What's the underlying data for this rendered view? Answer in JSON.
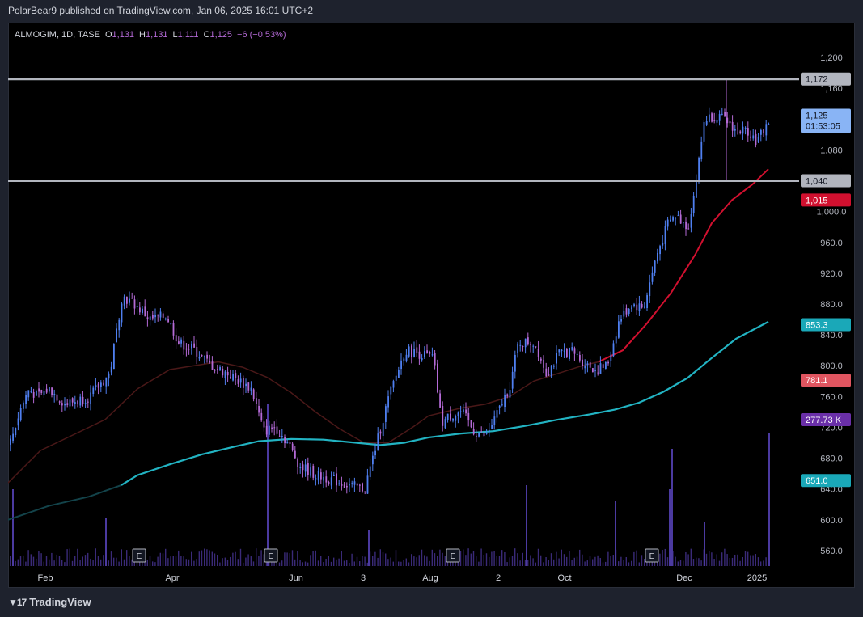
{
  "header": {
    "publisher_line": "PolarBear9 published on TradingView.com, Jan 06, 2025 16:01 UTC+2"
  },
  "footer": {
    "brand": "TradingView",
    "logo_icon": "tradingview-logo-icon"
  },
  "colors": {
    "background": "#000000",
    "up": "#4f7ff0",
    "down": "#b46ad6",
    "level_line": "#b2b5be",
    "ma_fast": "#d1102f",
    "ma_slow": "#22b3c2",
    "volume": "#3a2a78"
  },
  "chart_data": {
    "type": "candlestick",
    "symbol_line": {
      "symbol": "ALMOGIM, 1D, TASE",
      "o_label": "O",
      "o_value": "1,131",
      "h_label": "H",
      "h_value": "1,131",
      "l_label": "L",
      "l_value": "1,111",
      "c_label": "C",
      "c_value": "1,125",
      "change": "−6 (−0.53%)"
    },
    "y_axis": {
      "min": 540,
      "max": 1220,
      "ticks": [
        560,
        600,
        640,
        680,
        720,
        760,
        800,
        840,
        880,
        920,
        960,
        1000,
        1040,
        1080,
        1120,
        1160,
        1200
      ],
      "tick_labels": [
        "560.0",
        "600.0",
        "640.0",
        "680.0",
        "720.0",
        "760.0",
        "800.0",
        "840.0",
        "880.0",
        "920.0",
        "960.0",
        "1,000.0",
        "1,040",
        "1,080",
        "1,120",
        "1,160",
        "1,200"
      ]
    },
    "x_axis": {
      "labels": [
        "Feb",
        "Apr",
        "Jun",
        "3",
        "Aug",
        "2",
        "Oct",
        "Dec",
        "2025"
      ]
    },
    "horizontal_levels": [
      {
        "value": 1172,
        "label": "1,172"
      },
      {
        "value": 1040,
        "label": "1,040"
      }
    ],
    "price_labels": [
      {
        "name": "last-price",
        "value": 1125,
        "label": "1,125",
        "sublabel": "01:53:05"
      },
      {
        "name": "ma-fast",
        "value": 1015,
        "label": "1,015"
      },
      {
        "name": "ma-slow",
        "value": 853.3,
        "label": "853.3"
      },
      {
        "name": "ma-fast-old",
        "value": 781.1,
        "label": "781.1"
      },
      {
        "name": "volume",
        "value": 730,
        "label": "277.73 K"
      },
      {
        "name": "ma-slow-old",
        "value": 651.0,
        "label": "651.0"
      }
    ],
    "earnings_markers": [
      "E",
      "E",
      "E",
      "E"
    ],
    "trend": [
      [
        0,
        695
      ],
      [
        15,
        745
      ],
      [
        25,
        770
      ],
      [
        35,
        760
      ],
      [
        50,
        770
      ],
      [
        70,
        750
      ],
      [
        100,
        760
      ],
      [
        125,
        790
      ],
      [
        140,
        890
      ],
      [
        155,
        880
      ],
      [
        175,
        860
      ],
      [
        195,
        865
      ],
      [
        210,
        830
      ],
      [
        230,
        820
      ],
      [
        250,
        800
      ],
      [
        270,
        790
      ],
      [
        300,
        770
      ],
      [
        315,
        715
      ],
      [
        330,
        720
      ],
      [
        345,
        700
      ],
      [
        360,
        670
      ],
      [
        380,
        658
      ],
      [
        400,
        652
      ],
      [
        420,
        645
      ],
      [
        440,
        640
      ],
      [
        455,
        700
      ],
      [
        470,
        760
      ],
      [
        490,
        820
      ],
      [
        510,
        815
      ],
      [
        525,
        810
      ],
      [
        535,
        725
      ],
      [
        545,
        735
      ],
      [
        560,
        740
      ],
      [
        575,
        715
      ],
      [
        590,
        708
      ],
      [
        605,
        740
      ],
      [
        620,
        775
      ],
      [
        630,
        830
      ],
      [
        650,
        830
      ],
      [
        665,
        790
      ],
      [
        680,
        815
      ],
      [
        695,
        820
      ],
      [
        710,
        805
      ],
      [
        725,
        795
      ],
      [
        740,
        800
      ],
      [
        755,
        860
      ],
      [
        770,
        880
      ],
      [
        785,
        875
      ],
      [
        800,
        940
      ],
      [
        815,
        985
      ],
      [
        825,
        995
      ],
      [
        840,
        980
      ],
      [
        850,
        1040
      ],
      [
        860,
        1120
      ],
      [
        875,
        1125
      ],
      [
        890,
        1115
      ],
      [
        900,
        1105
      ],
      [
        915,
        1105
      ],
      [
        925,
        1090
      ],
      [
        935,
        1110
      ],
      [
        945,
        1125
      ]
    ],
    "ma_fast": [
      [
        0,
        648
      ],
      [
        40,
        690
      ],
      [
        80,
        710
      ],
      [
        120,
        730
      ],
      [
        160,
        770
      ],
      [
        200,
        795
      ],
      [
        230,
        800
      ],
      [
        260,
        805
      ],
      [
        290,
        798
      ],
      [
        320,
        785
      ],
      [
        350,
        765
      ],
      [
        380,
        740
      ],
      [
        410,
        718
      ],
      [
        440,
        700
      ],
      [
        470,
        700
      ],
      [
        500,
        720
      ],
      [
        520,
        735
      ],
      [
        560,
        745
      ],
      [
        590,
        750
      ],
      [
        620,
        760
      ],
      [
        650,
        780
      ],
      [
        680,
        790
      ],
      [
        710,
        800
      ],
      [
        730,
        805
      ],
      [
        760,
        820
      ],
      [
        790,
        855
      ],
      [
        820,
        895
      ],
      [
        850,
        945
      ],
      [
        870,
        985
      ],
      [
        895,
        1015
      ],
      [
        920,
        1035
      ],
      [
        940,
        1055
      ]
    ],
    "ma_slow": [
      [
        0,
        600
      ],
      [
        50,
        618
      ],
      [
        100,
        630
      ],
      [
        140,
        645
      ],
      [
        160,
        658
      ],
      [
        200,
        672
      ],
      [
        240,
        685
      ],
      [
        280,
        695
      ],
      [
        310,
        702
      ],
      [
        350,
        705
      ],
      [
        390,
        704
      ],
      [
        430,
        700
      ],
      [
        460,
        697
      ],
      [
        490,
        700
      ],
      [
        520,
        707
      ],
      [
        560,
        712
      ],
      [
        600,
        715
      ],
      [
        640,
        722
      ],
      [
        680,
        730
      ],
      [
        720,
        737
      ],
      [
        750,
        743
      ],
      [
        780,
        752
      ],
      [
        810,
        766
      ],
      [
        840,
        784
      ],
      [
        870,
        810
      ],
      [
        900,
        835
      ],
      [
        940,
        857
      ]
    ],
    "volume": [
      {
        "x": 5,
        "h": 95
      },
      {
        "x": 120,
        "h": 60
      },
      {
        "x": 320,
        "h": 200
      },
      {
        "x": 445,
        "h": 45
      },
      {
        "x": 640,
        "h": 100
      },
      {
        "x": 750,
        "h": 80
      },
      {
        "x": 820,
        "h": 145
      },
      {
        "x": 817,
        "h": 95
      },
      {
        "x": 860,
        "h": 55
      },
      {
        "x": 940,
        "h": 165
      }
    ]
  }
}
